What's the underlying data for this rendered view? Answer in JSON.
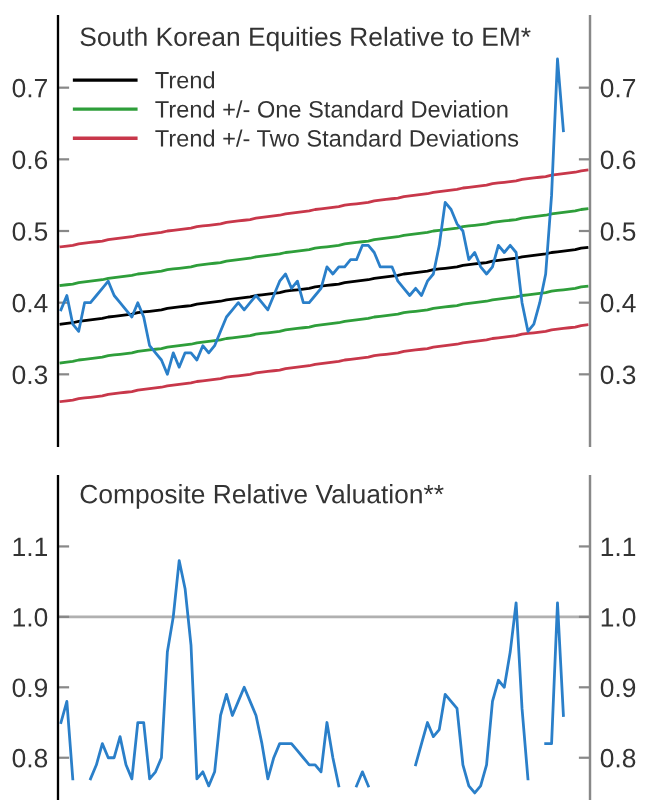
{
  "chart_data": [
    {
      "type": "line",
      "title": "South Korean Equities Relative to EM*",
      "legend": "top left",
      "tick_labels": "y",
      "categories": [
        null,
        null,
        null,
        null,
        null,
        null,
        null,
        null,
        null,
        null,
        null,
        null,
        null,
        null,
        null,
        null,
        null,
        null,
        null,
        null,
        null,
        null,
        null,
        null,
        null,
        null,
        null,
        null,
        null,
        null,
        null,
        null,
        null,
        null,
        null,
        null,
        null,
        null,
        null,
        null,
        null,
        null,
        null,
        null,
        null,
        null,
        null,
        null,
        null,
        null,
        null,
        null,
        null,
        null,
        null,
        null,
        null,
        null,
        null,
        null,
        null,
        null,
        null,
        null,
        null,
        null,
        null,
        null,
        null,
        null,
        null,
        null,
        null,
        null,
        null,
        null,
        null,
        null,
        null,
        null,
        null,
        null,
        null,
        null,
        null,
        null,
        null,
        null,
        null,
        null
      ],
      "ylim": [
        0.2,
        0.8
      ],
      "yticks": [
        0.3,
        0.4,
        0.5,
        0.6,
        0.7
      ],
      "y2lim": [
        0.2,
        0.8
      ],
      "y2ticks": [
        0.3,
        0.4,
        0.5,
        0.6,
        0.7
      ],
      "series": [
        {
          "color": "#c8374a",
          "name": "Trend +/- Two Standard Deviations",
          "values": [
            0.478,
            0.479,
            0.48,
            0.482,
            0.483,
            0.484,
            0.485,
            0.486,
            0.488,
            0.489,
            0.49,
            0.491,
            0.492,
            0.494,
            0.495,
            0.496,
            0.497,
            0.498,
            0.5,
            0.501,
            0.502,
            0.503,
            0.504,
            0.506,
            0.507,
            0.508,
            0.509,
            0.51,
            0.512,
            0.513,
            0.514,
            0.515,
            0.516,
            0.518,
            0.519,
            0.52,
            0.521,
            0.522,
            0.524,
            0.525,
            0.526,
            0.527,
            0.528,
            0.53,
            0.531,
            0.532,
            0.533,
            0.534,
            0.536,
            0.537,
            0.538,
            0.539,
            0.54,
            0.542,
            0.543,
            0.544,
            0.545,
            0.546,
            0.548,
            0.549,
            0.55,
            0.551,
            0.552,
            0.554,
            0.555,
            0.556,
            0.557,
            0.558,
            0.56,
            0.561,
            0.562,
            0.563,
            0.564,
            0.566,
            0.567,
            0.568,
            0.569,
            0.57,
            0.572,
            0.573,
            0.574,
            0.575,
            0.576,
            0.578,
            0.579,
            0.58,
            0.581,
            0.582,
            0.584,
            0.585
          ]
        },
        {
          "color": "#c8374a",
          "values": [
            0.262,
            0.263,
            0.264,
            0.266,
            0.267,
            0.268,
            0.269,
            0.27,
            0.272,
            0.273,
            0.274,
            0.275,
            0.276,
            0.278,
            0.279,
            0.28,
            0.281,
            0.282,
            0.284,
            0.285,
            0.286,
            0.287,
            0.288,
            0.29,
            0.291,
            0.292,
            0.293,
            0.294,
            0.296,
            0.297,
            0.298,
            0.299,
            0.3,
            0.302,
            0.303,
            0.304,
            0.305,
            0.306,
            0.308,
            0.309,
            0.31,
            0.311,
            0.312,
            0.314,
            0.315,
            0.316,
            0.317,
            0.318,
            0.32,
            0.321,
            0.322,
            0.323,
            0.324,
            0.326,
            0.327,
            0.328,
            0.329,
            0.33,
            0.332,
            0.333,
            0.334,
            0.335,
            0.336,
            0.338,
            0.339,
            0.34,
            0.341,
            0.342,
            0.344,
            0.345,
            0.346,
            0.347,
            0.348,
            0.35,
            0.351,
            0.352,
            0.353,
            0.354,
            0.356,
            0.357,
            0.358,
            0.359,
            0.36,
            0.362,
            0.363,
            0.364,
            0.365,
            0.366,
            0.368,
            0.369
          ]
        },
        {
          "color": "#2e9e3a",
          "name": "Trend +/- One Standard Deviation",
          "values": [
            0.424,
            0.425,
            0.426,
            0.428,
            0.429,
            0.43,
            0.431,
            0.432,
            0.434,
            0.435,
            0.436,
            0.437,
            0.438,
            0.44,
            0.441,
            0.442,
            0.443,
            0.444,
            0.446,
            0.447,
            0.448,
            0.449,
            0.45,
            0.452,
            0.453,
            0.454,
            0.455,
            0.456,
            0.458,
            0.459,
            0.46,
            0.461,
            0.462,
            0.464,
            0.465,
            0.466,
            0.467,
            0.468,
            0.47,
            0.471,
            0.472,
            0.473,
            0.474,
            0.476,
            0.477,
            0.478,
            0.479,
            0.48,
            0.482,
            0.483,
            0.484,
            0.485,
            0.486,
            0.488,
            0.489,
            0.49,
            0.491,
            0.492,
            0.494,
            0.495,
            0.496,
            0.497,
            0.498,
            0.5,
            0.501,
            0.502,
            0.503,
            0.504,
            0.506,
            0.507,
            0.508,
            0.509,
            0.51,
            0.512,
            0.513,
            0.514,
            0.515,
            0.516,
            0.518,
            0.519,
            0.52,
            0.521,
            0.522,
            0.524,
            0.525,
            0.526,
            0.527,
            0.528,
            0.53,
            0.531
          ]
        },
        {
          "color": "#2e9e3a",
          "values": [
            0.316,
            0.317,
            0.318,
            0.32,
            0.321,
            0.322,
            0.323,
            0.324,
            0.326,
            0.327,
            0.328,
            0.329,
            0.33,
            0.332,
            0.333,
            0.334,
            0.335,
            0.336,
            0.338,
            0.339,
            0.34,
            0.341,
            0.342,
            0.344,
            0.345,
            0.346,
            0.347,
            0.348,
            0.35,
            0.351,
            0.352,
            0.353,
            0.354,
            0.356,
            0.357,
            0.358,
            0.359,
            0.36,
            0.362,
            0.363,
            0.364,
            0.365,
            0.366,
            0.368,
            0.369,
            0.37,
            0.371,
            0.372,
            0.374,
            0.375,
            0.376,
            0.377,
            0.378,
            0.38,
            0.381,
            0.382,
            0.383,
            0.384,
            0.386,
            0.387,
            0.388,
            0.389,
            0.39,
            0.392,
            0.393,
            0.394,
            0.395,
            0.396,
            0.398,
            0.399,
            0.4,
            0.401,
            0.402,
            0.404,
            0.405,
            0.406,
            0.407,
            0.408,
            0.41,
            0.411,
            0.412,
            0.413,
            0.414,
            0.416,
            0.417,
            0.418,
            0.419,
            0.42,
            0.422,
            0.423
          ]
        },
        {
          "color": "#000000",
          "name": "Trend",
          "values": [
            0.37,
            0.371,
            0.372,
            0.374,
            0.375,
            0.376,
            0.377,
            0.378,
            0.38,
            0.381,
            0.382,
            0.383,
            0.384,
            0.386,
            0.387,
            0.388,
            0.389,
            0.39,
            0.392,
            0.393,
            0.394,
            0.395,
            0.396,
            0.398,
            0.399,
            0.4,
            0.401,
            0.402,
            0.404,
            0.405,
            0.406,
            0.407,
            0.408,
            0.41,
            0.411,
            0.412,
            0.413,
            0.414,
            0.416,
            0.417,
            0.418,
            0.419,
            0.42,
            0.422,
            0.423,
            0.424,
            0.425,
            0.426,
            0.428,
            0.429,
            0.43,
            0.431,
            0.432,
            0.434,
            0.435,
            0.436,
            0.437,
            0.438,
            0.44,
            0.441,
            0.442,
            0.443,
            0.444,
            0.446,
            0.447,
            0.448,
            0.449,
            0.45,
            0.452,
            0.453,
            0.454,
            0.455,
            0.456,
            0.458,
            0.459,
            0.46,
            0.461,
            0.462,
            0.464,
            0.465,
            0.466,
            0.467,
            0.468,
            0.47,
            0.471,
            0.472,
            0.473,
            0.474,
            0.476,
            0.477
          ]
        },
        {
          "color": "#2a7fc9",
          "values": [
            0.39,
            0.41,
            0.37,
            0.36,
            0.4,
            0.4,
            0.41,
            0.42,
            0.43,
            0.41,
            0.4,
            0.39,
            0.38,
            0.4,
            0.38,
            0.34,
            0.33,
            0.32,
            0.3,
            0.33,
            0.31,
            0.33,
            0.33,
            0.32,
            0.34,
            0.33,
            0.34,
            0.36,
            0.38,
            0.39,
            0.4,
            0.39,
            0.4,
            0.41,
            0.4,
            0.39,
            0.41,
            0.43,
            0.44,
            0.42,
            0.43,
            0.4,
            0.4,
            0.41,
            0.42,
            0.45,
            0.44,
            0.45,
            0.45,
            0.46,
            0.46,
            0.48,
            0.48,
            0.47,
            0.45,
            0.45,
            0.45,
            0.43,
            0.42,
            0.41,
            0.42,
            0.41,
            0.43,
            0.44,
            0.48,
            0.54,
            0.53,
            0.51,
            0.5,
            0.46,
            0.47,
            0.45,
            0.44,
            0.45,
            0.48,
            0.47,
            0.48,
            0.47,
            0.4,
            0.36,
            0.37,
            0.4,
            0.44,
            0.55,
            0.74,
            0.64,
            null,
            null,
            null,
            null
          ]
        }
      ]
    },
    {
      "type": "line",
      "title": "Composite Relative Valuation**",
      "tick_labels": "y",
      "categories": [
        null,
        null,
        null,
        null,
        null,
        null,
        null,
        null,
        null,
        null,
        null,
        null,
        null,
        null,
        null,
        null,
        null,
        null,
        null,
        null,
        null,
        null,
        null,
        null,
        null,
        null,
        null,
        null,
        null,
        null,
        null,
        null,
        null,
        null,
        null,
        null,
        null,
        null,
        null,
        null,
        null,
        null,
        null,
        null,
        null,
        null,
        null,
        null,
        null,
        null,
        null,
        null,
        null,
        null,
        null,
        null,
        null,
        null,
        null,
        null,
        null,
        null,
        null,
        null,
        null,
        null,
        null,
        null,
        null,
        null,
        null,
        null,
        null,
        null,
        null,
        null,
        null,
        null,
        null,
        null,
        null,
        null,
        null,
        null,
        null,
        null,
        null,
        null,
        null,
        null
      ],
      "ylim": [
        0.74,
        1.2
      ],
      "yticks": [
        0.8,
        0.9,
        {
          "value": 1.0,
          "label": "1.0"
        },
        1.1
      ],
      "y2lim": [
        0.74,
        1.2
      ],
      "y2ticks": [
        0.8,
        0.9,
        {
          "value": 1.0,
          "label": "1.0"
        },
        1.1
      ],
      "ref_lines": [
        {
          "axis": "y",
          "value": 1.0,
          "color": "#b0b0b0"
        }
      ],
      "series": [
        {
          "color": "#2a7fc9",
          "values": [
            0.85,
            0.88,
            0.77,
            null,
            null,
            0.77,
            0.79,
            0.82,
            0.8,
            0.8,
            0.83,
            0.79,
            0.77,
            0.85,
            0.85,
            0.77,
            0.78,
            0.8,
            0.95,
            1.0,
            1.08,
            1.04,
            0.96,
            0.77,
            0.78,
            0.76,
            0.78,
            0.86,
            0.89,
            0.86,
            0.88,
            0.9,
            0.88,
            0.86,
            0.82,
            0.77,
            0.8,
            0.82,
            0.82,
            0.82,
            0.81,
            0.8,
            0.79,
            0.79,
            0.78,
            0.85,
            0.8,
            0.76,
            null,
            null,
            0.76,
            0.78,
            0.76,
            null,
            null,
            null,
            null,
            null,
            null,
            null,
            0.79,
            0.82,
            0.85,
            0.83,
            0.84,
            0.89,
            0.88,
            0.87,
            0.79,
            0.76,
            0.75,
            0.76,
            0.79,
            0.88,
            0.91,
            0.9,
            0.95,
            1.02,
            0.87,
            0.77,
            null,
            null,
            0.82,
            0.82,
            1.02,
            0.86,
            null,
            null,
            null,
            null
          ]
        }
      ]
    }
  ]
}
